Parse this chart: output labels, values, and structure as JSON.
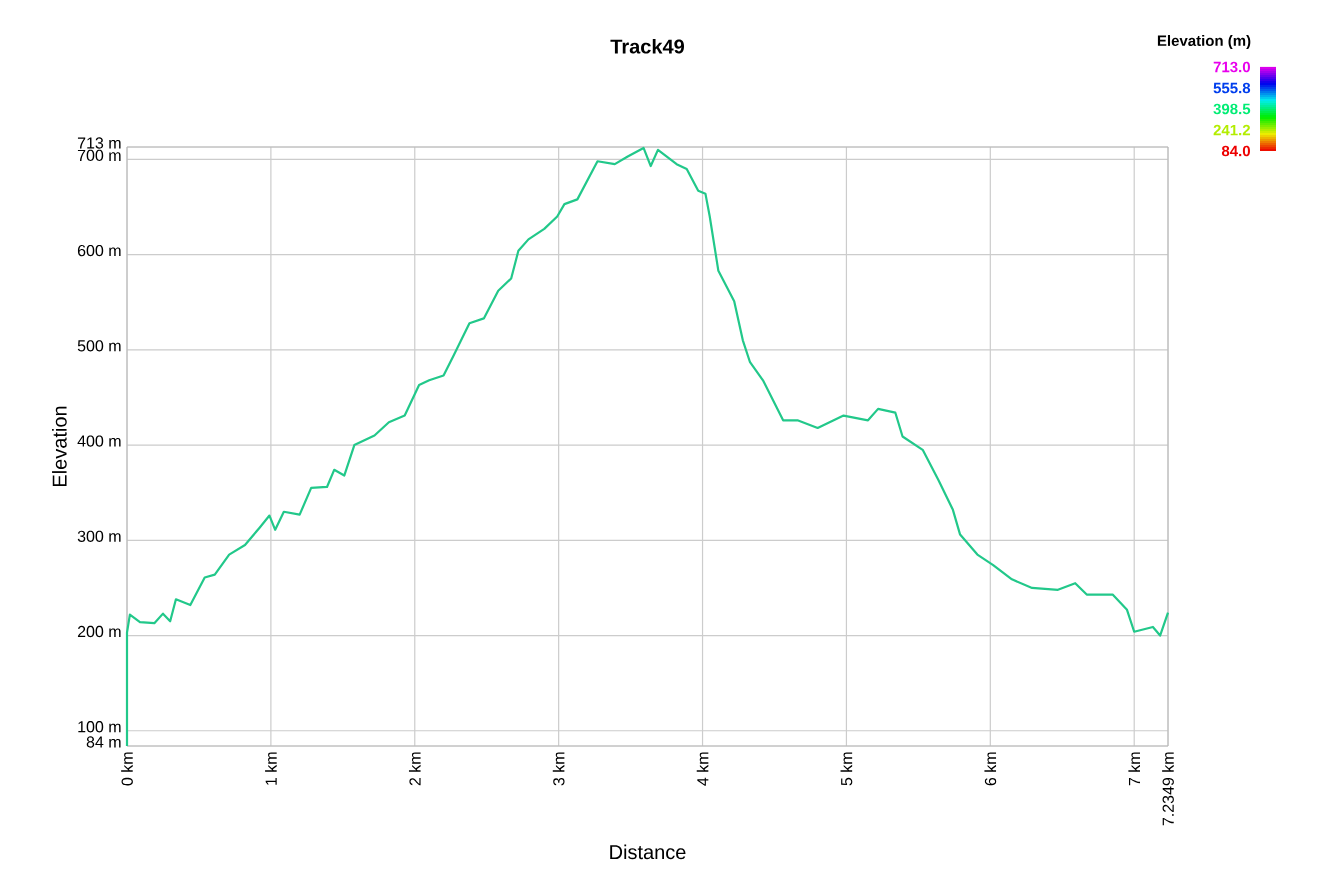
{
  "chart_data": {
    "type": "line",
    "title": "Track49",
    "xlabel": "Distance",
    "ylabel": "Elevation",
    "clabel": "Elevation (m)",
    "x": [
      0,
      0,
      0.02,
      0.09,
      0.19,
      0.25,
      0.3,
      0.34,
      0.44,
      0.54,
      0.61,
      0.71,
      0.82,
      0.92,
      0.99,
      1.03,
      1.09,
      1.2,
      1.28,
      1.39,
      1.44,
      1.51,
      1.58,
      1.72,
      1.82,
      1.93,
      2.03,
      2.1,
      2.2,
      2.27,
      2.38,
      2.48,
      2.58,
      2.67,
      2.72,
      2.79,
      2.9,
      2.99,
      3.04,
      3.13,
      3.27,
      3.39,
      3.48,
      3.59,
      3.64,
      3.69,
      3.82,
      3.89,
      3.97,
      4.02,
      4.05,
      4.11,
      4.22,
      4.28,
      4.33,
      4.42,
      4.56,
      4.66,
      4.8,
      4.98,
      5.15,
      5.22,
      5.34,
      5.39,
      5.53,
      5.64,
      5.74,
      5.79,
      5.91,
      6.02,
      6.15,
      6.29,
      6.47,
      6.59,
      6.67,
      6.85,
      6.95,
      7.0,
      7.13,
      7.18,
      7.2349
    ],
    "series": [
      {
        "color": "#22c88a",
        "values": [
          84,
          203,
          222,
          214,
          213,
          223,
          215,
          238,
          232,
          261,
          264,
          285,
          295,
          313,
          326,
          311,
          330,
          327,
          355,
          356,
          374,
          368,
          400,
          410,
          424,
          431,
          463,
          468,
          473,
          494,
          528,
          533,
          562,
          575,
          604,
          616,
          627,
          640,
          653,
          658,
          698,
          695,
          703,
          712,
          693,
          710,
          695,
          690,
          667,
          664,
          640,
          583,
          551,
          510,
          487,
          468,
          426,
          426,
          418,
          431,
          426,
          438,
          434,
          409,
          395,
          363,
          332,
          306,
          285,
          274,
          259,
          250,
          248,
          255,
          243,
          243,
          227,
          204,
          209,
          200,
          224
        ]
      }
    ],
    "xlim": [
      0,
      7.2349
    ],
    "ylim": [
      84,
      713
    ],
    "xticks": [
      {
        "value": 0,
        "label": "0 km"
      },
      {
        "value": 1,
        "label": "1 km"
      },
      {
        "value": 2,
        "label": "2 km"
      },
      {
        "value": 3,
        "label": "3 km"
      },
      {
        "value": 4,
        "label": "4 km"
      },
      {
        "value": 5,
        "label": "5 km"
      },
      {
        "value": 6,
        "label": "6 km"
      },
      {
        "value": 7,
        "label": "7 km"
      },
      {
        "value": 7.2349,
        "label": "7.2349 km"
      }
    ],
    "yticks": [
      {
        "value": 84,
        "label": "84 m"
      },
      {
        "value": 100,
        "label": "100 m"
      },
      {
        "value": 200,
        "label": "200 m"
      },
      {
        "value": 300,
        "label": "300 m"
      },
      {
        "value": 400,
        "label": "400 m"
      },
      {
        "value": 500,
        "label": "500 m"
      },
      {
        "value": 600,
        "label": "600 m"
      },
      {
        "value": 700,
        "label": "700 m"
      },
      {
        "value": 713,
        "label": "713 m"
      }
    ],
    "clim": [
      84,
      713
    ],
    "cticks": [
      {
        "value": 713,
        "label": "713.0"
      },
      {
        "value": 555.8,
        "label": "555.8"
      },
      {
        "value": 398.5,
        "label": "398.5"
      },
      {
        "value": 241.2,
        "label": "241.2"
      },
      {
        "value": 84,
        "label": "84.0"
      }
    ],
    "grid": true
  }
}
